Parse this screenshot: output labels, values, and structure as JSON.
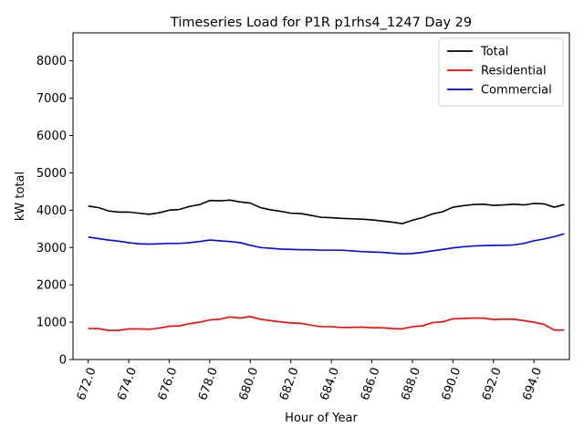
{
  "chart_data": {
    "type": "line",
    "title": "Timeseries Load for P1R p1rhs4_1247  Day 29",
    "xlabel": "Hour of Year",
    "ylabel": "kW total",
    "xlim": [
      671.25,
      695.75
    ],
    "ylim": [
      0,
      8750
    ],
    "x_ticks": [
      672,
      674,
      676,
      678,
      680,
      682,
      684,
      686,
      688,
      690,
      692,
      694
    ],
    "x_tick_labels": [
      "672.0",
      "674.0",
      "676.0",
      "678.0",
      "680.0",
      "682.0",
      "684.0",
      "686.0",
      "688.0",
      "690.0",
      "692.0",
      "694.0"
    ],
    "y_ticks": [
      0,
      1000,
      2000,
      3000,
      4000,
      5000,
      6000,
      7000,
      8000
    ],
    "y_tick_labels": [
      "0",
      "1000",
      "2000",
      "3000",
      "4000",
      "5000",
      "6000",
      "7000",
      "8000"
    ],
    "legend_position": "top-right",
    "x": [
      672.0,
      672.5,
      673.0,
      673.5,
      674.0,
      674.5,
      675.0,
      675.5,
      676.0,
      676.5,
      677.0,
      677.5,
      678.0,
      678.5,
      679.0,
      679.5,
      680.0,
      680.5,
      681.0,
      681.5,
      682.0,
      682.5,
      683.0,
      683.5,
      684.0,
      684.5,
      685.0,
      685.5,
      686.0,
      686.5,
      687.0,
      687.5,
      688.0,
      688.5,
      689.0,
      689.5,
      690.0,
      690.5,
      691.0,
      691.5,
      692.0,
      692.5,
      693.0,
      693.5,
      694.0,
      694.5,
      695.0,
      695.5
    ],
    "series": [
      {
        "name": "Total",
        "color": "#000000",
        "values": [
          4110,
          4070,
          3980,
          3950,
          3950,
          3920,
          3890,
          3930,
          4000,
          4020,
          4100,
          4150,
          4260,
          4250,
          4270,
          4220,
          4190,
          4070,
          4010,
          3970,
          3920,
          3910,
          3860,
          3810,
          3800,
          3780,
          3770,
          3760,
          3740,
          3710,
          3680,
          3640,
          3730,
          3800,
          3900,
          3960,
          4080,
          4120,
          4150,
          4160,
          4130,
          4140,
          4160,
          4140,
          4180,
          4170,
          4080,
          4150
        ]
      },
      {
        "name": "Residential",
        "color": "#ff0000",
        "values": [
          830,
          830,
          780,
          780,
          820,
          820,
          810,
          840,
          890,
          900,
          960,
          1000,
          1060,
          1080,
          1140,
          1110,
          1150,
          1080,
          1040,
          1010,
          980,
          970,
          920,
          880,
          880,
          860,
          860,
          870,
          850,
          850,
          830,
          820,
          880,
          900,
          990,
          1010,
          1090,
          1100,
          1110,
          1110,
          1070,
          1080,
          1080,
          1040,
          1000,
          940,
          790,
          790
        ]
      },
      {
        "name": "Commercial",
        "color": "#0000ff",
        "values": [
          3280,
          3240,
          3200,
          3170,
          3130,
          3100,
          3090,
          3100,
          3110,
          3110,
          3130,
          3160,
          3200,
          3180,
          3160,
          3130,
          3060,
          3000,
          2980,
          2960,
          2950,
          2940,
          2940,
          2930,
          2930,
          2930,
          2910,
          2890,
          2880,
          2870,
          2850,
          2830,
          2840,
          2870,
          2910,
          2950,
          2990,
          3020,
          3040,
          3050,
          3060,
          3060,
          3070,
          3110,
          3180,
          3230,
          3290,
          3370
        ]
      }
    ]
  }
}
